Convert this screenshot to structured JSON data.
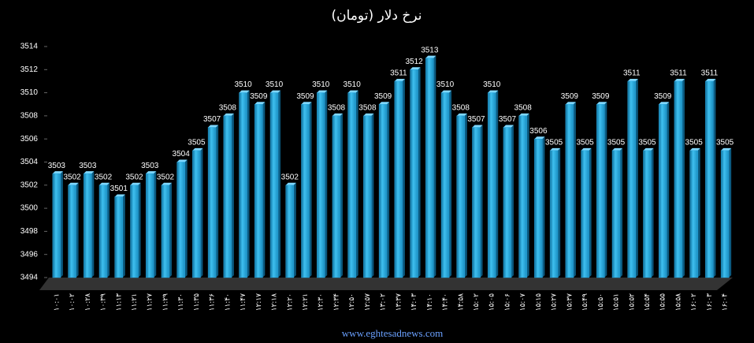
{
  "chart_data": {
    "type": "bar",
    "title": "نرخ دلار (تومان)",
    "footer": "www.eghtesadnews.com",
    "categories": [
      "۱۰:۰۱",
      "۱۰:۰۲",
      "۱۰:۲۸",
      "۱۰:۳۹",
      "۱۱:۱۳",
      "۱۱:۲۱",
      "۱۱:۲۷",
      "۱۱:۲۹",
      "۱۱:۳۰",
      "۱۱:۳۵",
      "۱۱:۳۶",
      "۱۱:۴۰",
      "۱۱:۴۷",
      "۱۲:۱۷",
      "۱۲:۱۸",
      "۱۲:۲۰",
      "۱۲:۲۱",
      "۱۲:۳۰",
      "۱۲:۳۴",
      "۱۲:۵۰",
      "۱۲:۵۷",
      "۱۳:۰۲",
      "۱۳:۳۷",
      "۱۴:۰۳",
      "۱۴:۱۰",
      "۱۴:۴۰",
      "۱۴:۵۸",
      "۱۵:۰۲",
      "۱۵:۰۵",
      "۱۵:۰۶",
      "۱۵:۰۷",
      "۱۵:۱۵",
      "۱۵:۲۷",
      "۱۵:۳۷",
      "۱۵:۴۹",
      "۱۵:۵۰",
      "۱۵:۵۱",
      "۱۵:۵۲",
      "۱۵:۵۴",
      "۱۵:۵۵",
      "۱۵:۵۸",
      "۱۶:۰۲",
      "۱۶:۰۳",
      "۱۶:۰۴"
    ],
    "values": [
      3503,
      3502,
      3503,
      3502,
      3501,
      3502,
      3503,
      3502,
      3504,
      3505,
      3507,
      3508,
      3510,
      3509,
      3510,
      3502,
      3509,
      3510,
      3508,
      3510,
      3508,
      3509,
      3511,
      3512,
      3513,
      3510,
      3508,
      3507,
      3510,
      3507,
      3508,
      3506,
      3505,
      3509,
      3505,
      3509,
      3505,
      3511,
      3505,
      3509,
      3511,
      3505,
      3511,
      3505
    ],
    "color": "#29a8e0",
    "ylim": [
      3494,
      3514
    ],
    "yticks": [
      3494,
      3496,
      3498,
      3500,
      3502,
      3504,
      3506,
      3508,
      3510,
      3512,
      3514
    ]
  }
}
